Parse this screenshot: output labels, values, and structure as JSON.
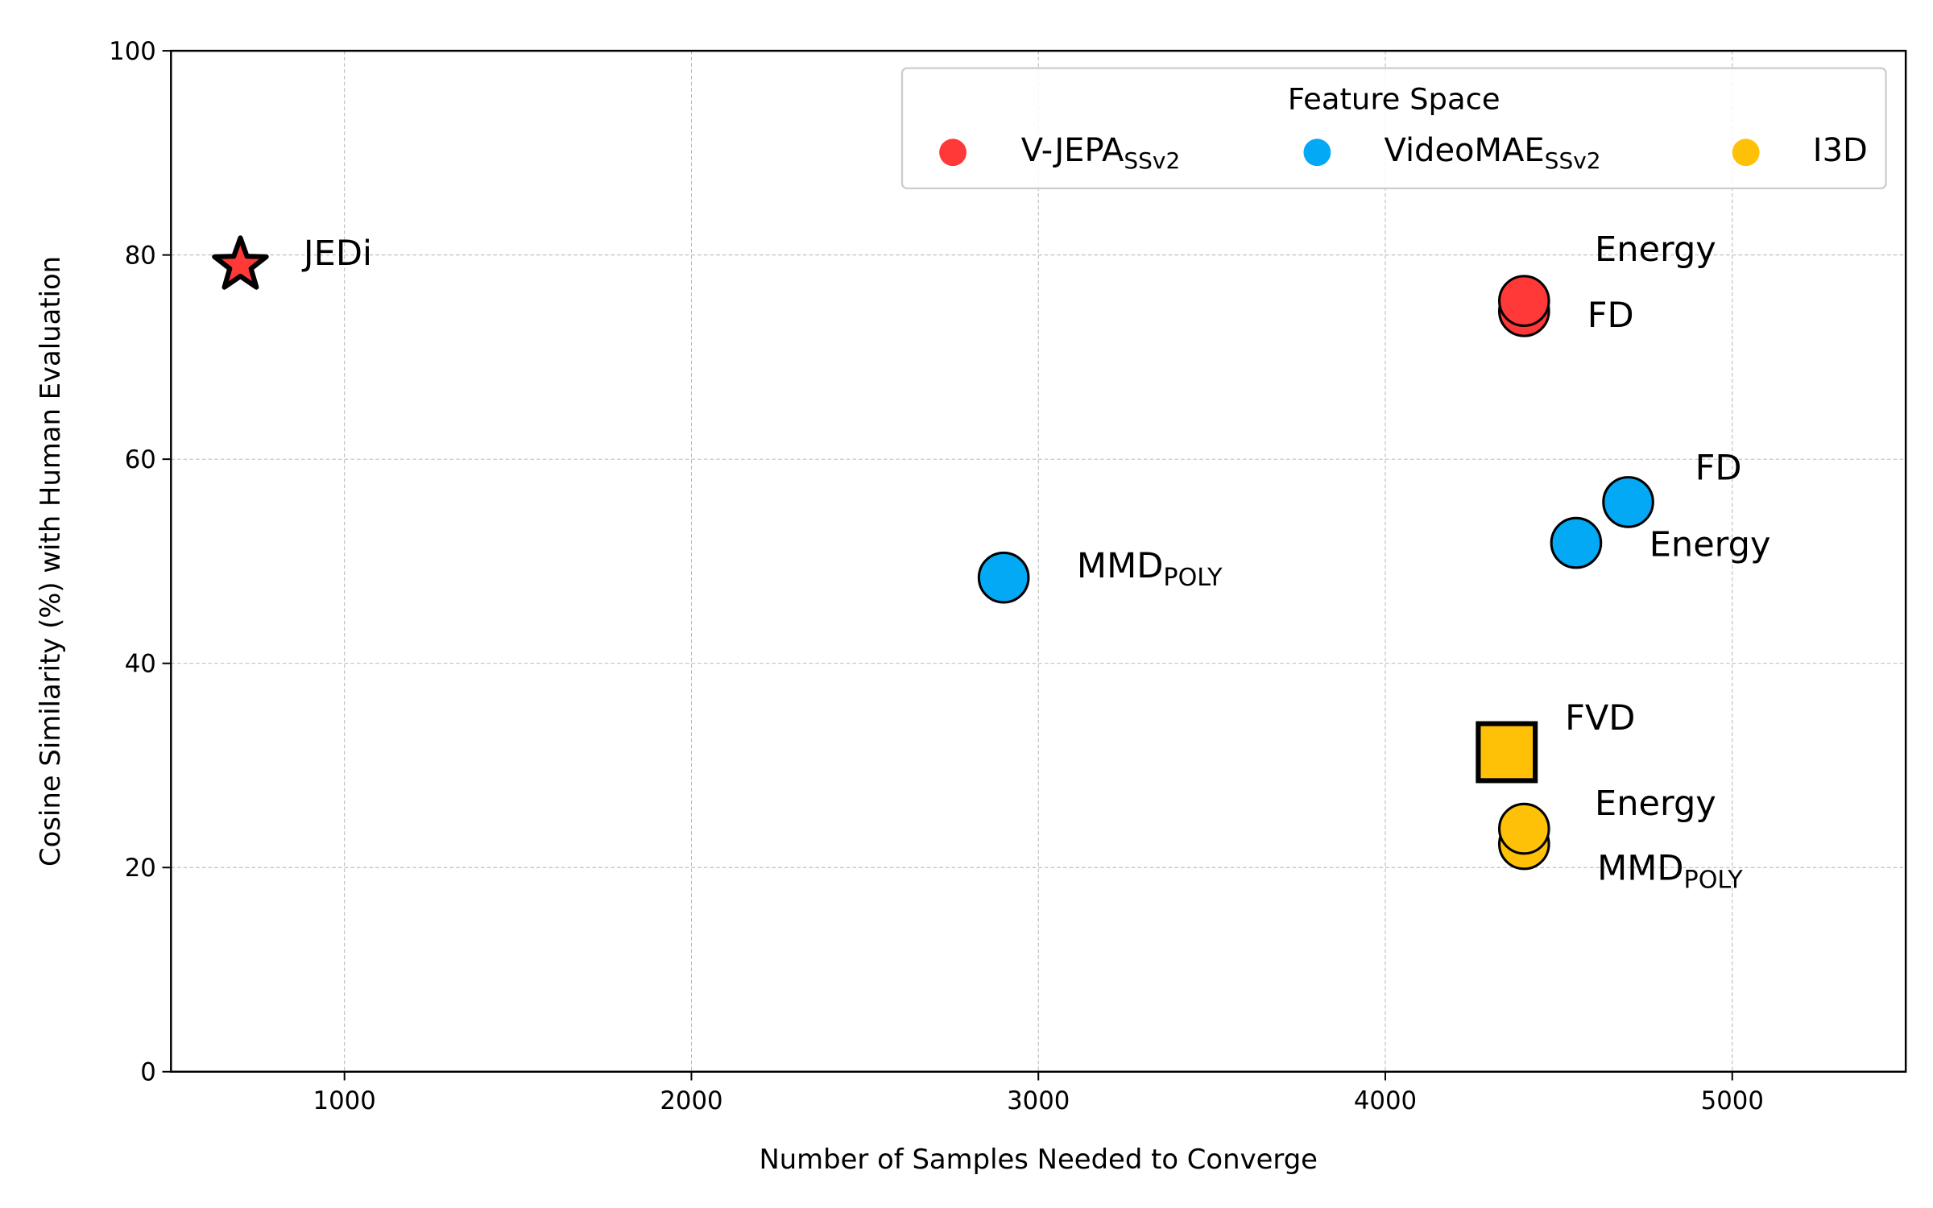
{
  "chart_data": {
    "type": "scatter",
    "title": "",
    "xlabel": "Number of Samples Needed to Converge",
    "ylabel": "Cosine Similarity (%) with Human Evaluation",
    "xlim": [
      500,
      5500
    ],
    "ylim": [
      0,
      100
    ],
    "xticks": [
      1000,
      2000,
      3000,
      4000,
      5000
    ],
    "yticks": [
      0,
      20,
      40,
      60,
      80,
      100
    ],
    "grid": true,
    "legend": {
      "title": "Feature Space",
      "placement": "top-right",
      "entries": [
        {
          "name": "V-JEPA",
          "sub": "SSv2",
          "color": "#FF3838"
        },
        {
          "name": "VideoMAE",
          "sub": "SSv2",
          "color": "#03A9F4"
        },
        {
          "name": "I3D",
          "sub": "",
          "color": "#FFC107"
        }
      ]
    },
    "points": [
      {
        "label": "JEDi",
        "sub": "",
        "x": 700,
        "y": 79,
        "marker": "star",
        "color": "#FF3838"
      },
      {
        "label": "FD",
        "sub": "",
        "x": 4400,
        "y": 74.5,
        "marker": "circle",
        "color": "#FF3838"
      },
      {
        "label": "Energy",
        "sub": "",
        "x": 4400,
        "y": 75.5,
        "marker": "circle",
        "color": "#FF3838"
      },
      {
        "label": "MMD",
        "sub": "POLY",
        "x": 2900,
        "y": 48.4,
        "marker": "circle",
        "color": "#03A9F4"
      },
      {
        "label": "Energy",
        "sub": "",
        "x": 4550,
        "y": 51.8,
        "marker": "circle",
        "color": "#03A9F4"
      },
      {
        "label": "FD",
        "sub": "",
        "x": 4700,
        "y": 55.8,
        "marker": "circle",
        "color": "#03A9F4"
      },
      {
        "label": "FVD",
        "sub": "",
        "x": 4350,
        "y": 31.3,
        "marker": "square",
        "color": "#FFC107"
      },
      {
        "label": "MMD",
        "sub": "POLY",
        "x": 4400,
        "y": 22.3,
        "marker": "circle",
        "color": "#FFC107"
      },
      {
        "label": "Energy",
        "sub": "",
        "x": 4400,
        "y": 23.8,
        "marker": "circle",
        "color": "#FFC107"
      }
    ]
  }
}
